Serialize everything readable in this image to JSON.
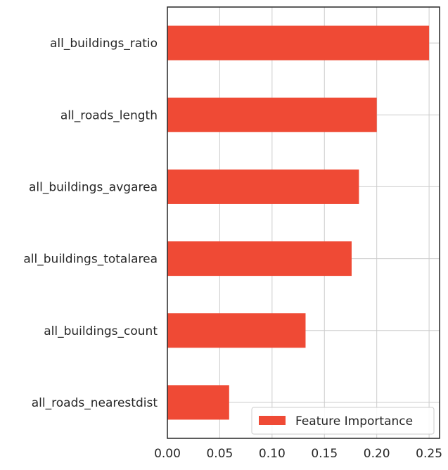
{
  "chart_data": {
    "type": "bar",
    "orientation": "horizontal",
    "categories": [
      "all_roads_nearestdist",
      "all_buildings_count",
      "all_buildings_totalarea",
      "all_buildings_avgarea",
      "all_roads_length",
      "all_buildings_ratio"
    ],
    "series": [
      {
        "name": "Feature Importance",
        "values": [
          0.059,
          0.132,
          0.176,
          0.183,
          0.2,
          0.25
        ],
        "color": "#ef4a35"
      }
    ],
    "xlim": [
      0.0,
      0.26
    ],
    "xticks": [
      "0.00",
      "0.05",
      "0.10",
      "0.15",
      "0.20",
      "0.25"
    ],
    "grid": true,
    "legend_position": "lower-right"
  }
}
